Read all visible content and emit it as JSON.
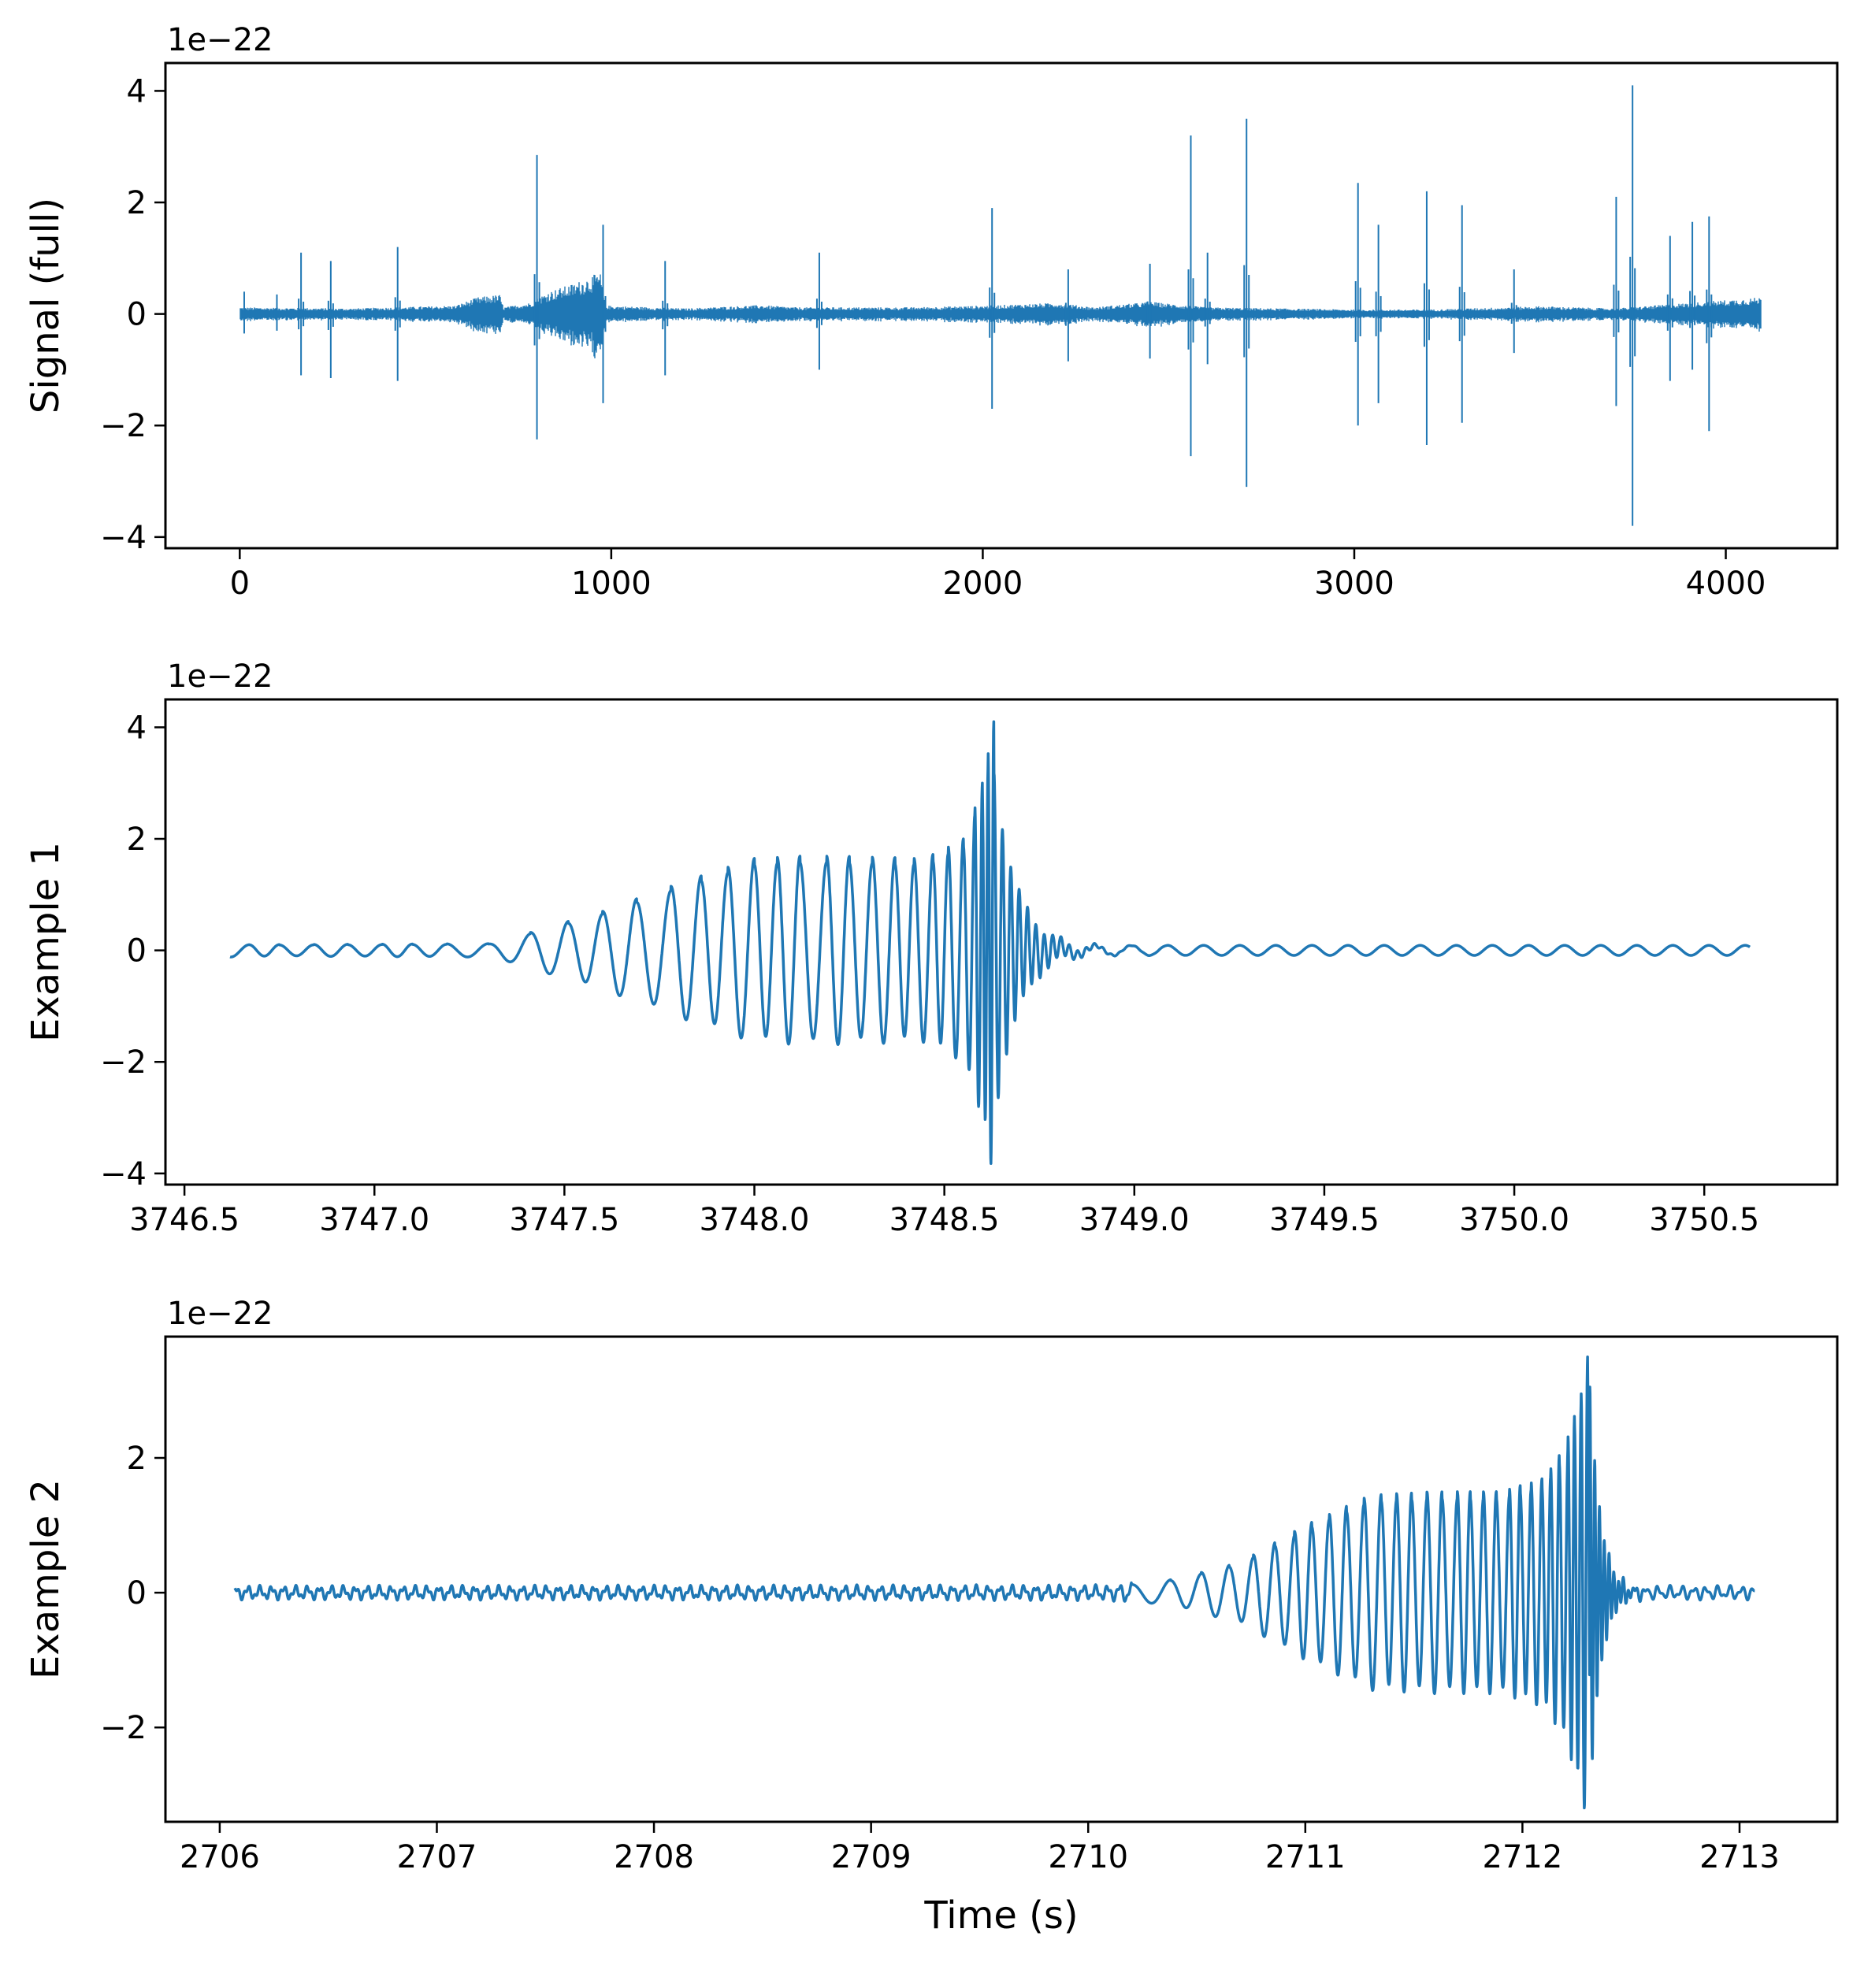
{
  "figure": {
    "line_color": "#1f77b4"
  },
  "chart_data": [
    {
      "type": "line",
      "ylabel": "Signal (full)",
      "xlabel": "",
      "offset_text": "1e−22",
      "xlim": [
        -200,
        4300
      ],
      "ylim": [
        -4.2,
        4.5
      ],
      "xticks": [
        0,
        1000,
        2000,
        3000,
        4000
      ],
      "xtick_labels": [
        "0",
        "1000",
        "2000",
        "3000",
        "4000"
      ],
      "yticks": [
        -4,
        -2,
        0,
        2,
        4
      ],
      "ytick_labels": [
        "−4",
        "−2",
        "0",
        "2",
        "4"
      ],
      "signal": {
        "t_start": 0,
        "t_end": 4096,
        "base_envelope": [
          [
            0,
            0.12
          ],
          [
            300,
            0.1
          ],
          [
            580,
            0.15
          ],
          [
            640,
            0.3
          ],
          [
            700,
            0.35
          ],
          [
            710,
            0.12
          ],
          [
            780,
            0.2
          ],
          [
            830,
            0.4
          ],
          [
            900,
            0.55
          ],
          [
            970,
            0.75
          ],
          [
            985,
            0.15
          ],
          [
            1200,
            0.1
          ],
          [
            1400,
            0.16
          ],
          [
            1500,
            0.12
          ],
          [
            1800,
            0.12
          ],
          [
            2000,
            0.15
          ],
          [
            2200,
            0.2
          ],
          [
            2300,
            0.12
          ],
          [
            2450,
            0.22
          ],
          [
            2600,
            0.12
          ],
          [
            3000,
            0.08
          ],
          [
            3200,
            0.08
          ],
          [
            3500,
            0.14
          ],
          [
            3700,
            0.1
          ],
          [
            3900,
            0.2
          ],
          [
            4096,
            0.3
          ]
        ],
        "spikes": [
          {
            "t": 12,
            "up": 0.4,
            "down": -0.35
          },
          {
            "t": 100,
            "up": 0.35,
            "down": -0.3
          },
          {
            "t": 165,
            "up": 1.1,
            "down": -1.1
          },
          {
            "t": 245,
            "up": 0.95,
            "down": -1.15
          },
          {
            "t": 425,
            "up": 1.2,
            "down": -1.2
          },
          {
            "t": 800,
            "up": 2.85,
            "down": -2.25
          },
          {
            "t": 978,
            "up": 1.6,
            "down": -1.6
          },
          {
            "t": 1145,
            "up": 0.95,
            "down": -1.1
          },
          {
            "t": 1560,
            "up": 1.1,
            "down": -1.0
          },
          {
            "t": 2025,
            "up": 1.9,
            "down": -1.7
          },
          {
            "t": 2230,
            "up": 0.8,
            "down": -0.85
          },
          {
            "t": 2450,
            "up": 0.9,
            "down": -0.8
          },
          {
            "t": 2560,
            "up": 3.2,
            "down": -2.55
          },
          {
            "t": 2605,
            "up": 1.1,
            "down": -0.9
          },
          {
            "t": 2710,
            "up": 3.5,
            "down": -3.1
          },
          {
            "t": 3010,
            "up": 2.35,
            "down": -2.0
          },
          {
            "t": 3065,
            "up": 1.6,
            "down": -1.6
          },
          {
            "t": 3195,
            "up": 2.2,
            "down": -2.35
          },
          {
            "t": 3290,
            "up": 1.95,
            "down": -1.95
          },
          {
            "t": 3430,
            "up": 0.8,
            "down": -0.7
          },
          {
            "t": 3705,
            "up": 2.1,
            "down": -1.65
          },
          {
            "t": 3749,
            "up": 4.1,
            "down": -3.8
          },
          {
            "t": 3850,
            "up": 1.4,
            "down": -1.2
          },
          {
            "t": 3910,
            "up": 1.65,
            "down": -1.0
          },
          {
            "t": 3955,
            "up": 1.75,
            "down": -2.1
          }
        ]
      }
    },
    {
      "type": "line",
      "ylabel": "Example 1",
      "xlabel": "",
      "offset_text": "1e−22",
      "xlim": [
        3746.45,
        3750.85
      ],
      "ylim": [
        -4.2,
        4.5
      ],
      "xticks": [
        3746.5,
        3747.0,
        3747.5,
        3748.0,
        3748.5,
        3749.0,
        3749.5,
        3750.0,
        3750.5
      ],
      "xtick_labels": [
        "3746.5",
        "3747.0",
        "3747.5",
        "3748.0",
        "3748.5",
        "3749.0",
        "3749.5",
        "3750.0",
        "3750.5"
      ],
      "yticks": [
        -4,
        -2,
        0,
        2,
        4
      ],
      "ytick_labels": [
        "−4",
        "−2",
        "0",
        "2",
        "4"
      ],
      "signal": {
        "t_start": 3746.62,
        "t_end": 3750.62,
        "merger_time": 3748.62,
        "pre_amplitude": [
          [
            3746.62,
            0.1
          ],
          [
            3747.3,
            0.12
          ],
          [
            3747.4,
            0.3
          ],
          [
            3747.6,
            0.7
          ],
          [
            3747.8,
            1.2
          ],
          [
            3748.0,
            1.65
          ],
          [
            3748.15,
            1.7
          ],
          [
            3748.45,
            1.65
          ],
          [
            3748.55,
            2.0
          ],
          [
            3748.6,
            3.0
          ],
          [
            3748.63,
            4.1
          ]
        ],
        "cycle_peaks": [
          3746.67,
          3746.75,
          3746.84,
          3746.93,
          3747.02,
          3747.1,
          3747.19,
          3747.3,
          3747.41,
          3747.51,
          3747.6,
          3747.69,
          3747.78,
          3747.86,
          3747.93,
          3748.0,
          3748.06,
          3748.12,
          3748.19,
          3748.25,
          3748.31,
          3748.37,
          3748.42,
          3748.47,
          3748.51,
          3748.55,
          3748.58,
          3748.6,
          3748.615,
          3748.63
        ],
        "ringdown_tau": 0.06,
        "post_noise": 0.09
      }
    },
    {
      "type": "line",
      "ylabel": "Example 2",
      "xlabel": "Time (s)",
      "offset_text": "1e−22",
      "xlim": [
        2705.75,
        2713.45
      ],
      "ylim": [
        -3.4,
        3.8
      ],
      "xticks": [
        2706,
        2707,
        2708,
        2709,
        2710,
        2711,
        2712,
        2713
      ],
      "xtick_labels": [
        "2706",
        "2707",
        "2708",
        "2709",
        "2710",
        "2711",
        "2712",
        "2713"
      ],
      "yticks": [
        -2,
        0,
        2
      ],
      "ytick_labels": [
        "−2",
        "0",
        "2"
      ],
      "signal": {
        "t_start": 2706.07,
        "t_end": 2713.07,
        "merger_time": 2712.3,
        "pre_amplitude": [
          [
            2706.07,
            0.07
          ],
          [
            2710.1,
            0.08
          ],
          [
            2710.4,
            0.2
          ],
          [
            2710.7,
            0.45
          ],
          [
            2711.0,
            1.0
          ],
          [
            2711.3,
            1.45
          ],
          [
            2711.6,
            1.5
          ],
          [
            2711.9,
            1.5
          ],
          [
            2712.1,
            1.7
          ],
          [
            2712.2,
            2.2
          ],
          [
            2712.28,
            3.1
          ],
          [
            2712.3,
            3.5
          ]
        ],
        "cycle_peaks": [
          2710.2,
          2710.38,
          2710.52,
          2710.65,
          2710.76,
          2710.86,
          2710.95,
          2711.03,
          2711.11,
          2711.19,
          2711.27,
          2711.35,
          2711.42,
          2711.49,
          2711.56,
          2711.63,
          2711.7,
          2711.76,
          2711.82,
          2711.88,
          2711.94,
          2711.99,
          2712.04,
          2712.09,
          2712.13,
          2712.17,
          2712.21,
          2712.24,
          2712.27,
          2712.3
        ],
        "ringdown_tau": 0.05,
        "post_noise": 0.07
      }
    }
  ]
}
